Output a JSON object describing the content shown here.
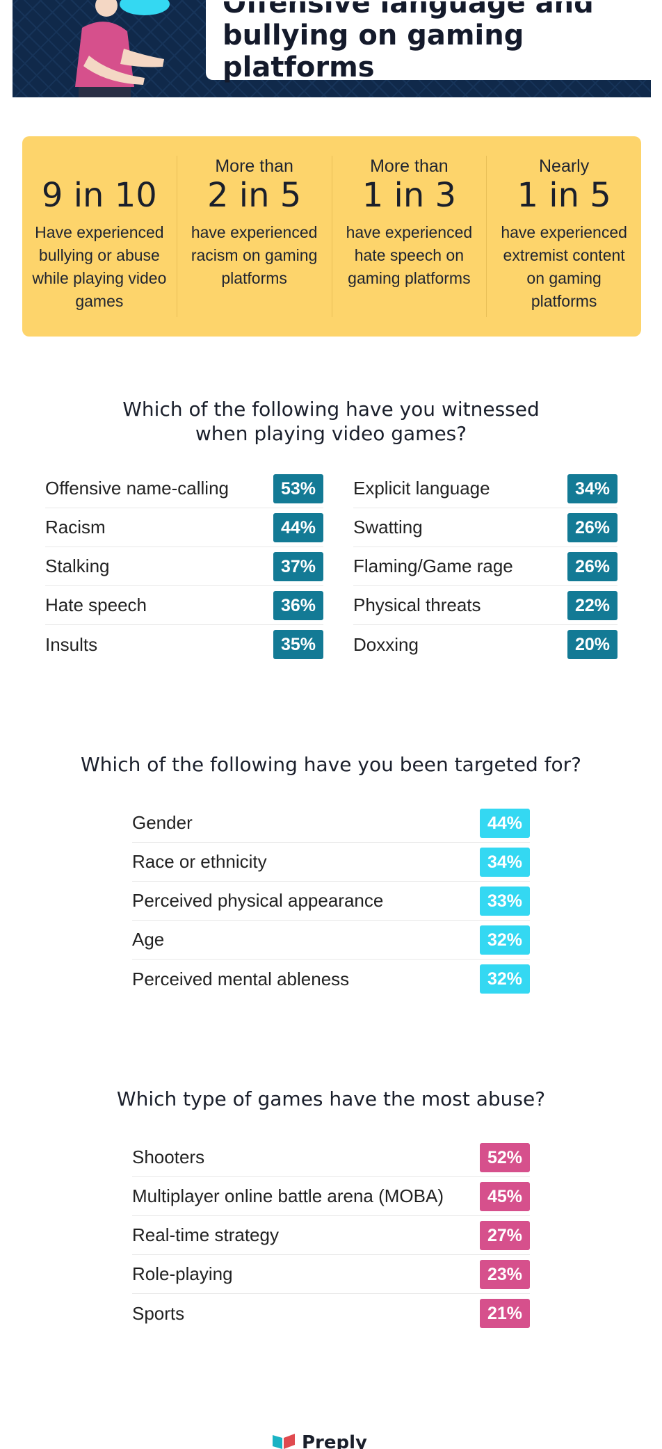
{
  "header": {
    "title_line1": "Offensive language and",
    "title_line2": "bullying on gaming platforms"
  },
  "stats": [
    {
      "prefix": "",
      "value": "9 in 10",
      "desc": "Have experienced bullying or abuse while playing video games"
    },
    {
      "prefix": "More than",
      "value": "2 in 5",
      "desc": "have experienced racism on gaming platforms"
    },
    {
      "prefix": "More than",
      "value": "1 in 3",
      "desc": "have experienced hate speech on gaming platforms"
    },
    {
      "prefix": "Nearly",
      "value": "1 in 5",
      "desc": "have experienced extremist content on gaming platforms"
    }
  ],
  "witnessed": {
    "heading_line1": "Which of the following have you witnessed",
    "heading_line2": "when playing video games?",
    "left": [
      {
        "label": "Offensive name-calling",
        "value": "53%"
      },
      {
        "label": "Racism",
        "value": "44%"
      },
      {
        "label": "Stalking",
        "value": "37%"
      },
      {
        "label": "Hate speech",
        "value": "36%"
      },
      {
        "label": "Insults",
        "value": "35%"
      }
    ],
    "right": [
      {
        "label": "Explicit language",
        "value": "34%"
      },
      {
        "label": "Swatting",
        "value": "26%"
      },
      {
        "label": "Flaming/Game rage",
        "value": "26%"
      },
      {
        "label": "Physical threats",
        "value": "22%"
      },
      {
        "label": "Doxxing",
        "value": "20%"
      }
    ],
    "badge_color": "#137a95"
  },
  "targeted": {
    "heading": "Which of the following have you been targeted for?",
    "items": [
      {
        "label": "Gender",
        "value": "44%"
      },
      {
        "label": "Race or ethnicity",
        "value": "34%"
      },
      {
        "label": "Perceived physical appearance",
        "value": "33%"
      },
      {
        "label": "Age",
        "value": "32%"
      },
      {
        "label": "Perceived mental ableness",
        "value": "32%"
      }
    ],
    "badge_color": "#34d8f2"
  },
  "games": {
    "heading": "Which type of games have the most abuse?",
    "items": [
      {
        "label": "Shooters",
        "value": "52%"
      },
      {
        "label": "Multiplayer online battle arena (MOBA)",
        "value": "45%"
      },
      {
        "label": "Real-time strategy",
        "value": "27%"
      },
      {
        "label": "Role-playing",
        "value": "23%"
      },
      {
        "label": "Sports",
        "value": "21%"
      }
    ],
    "badge_color": "#d6508c"
  },
  "footer": {
    "brand": "Preply",
    "icon": "preply-logo-icon"
  }
}
